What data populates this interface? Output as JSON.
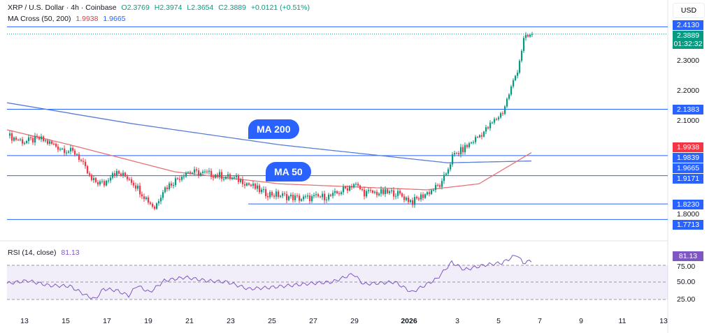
{
  "header": {
    "symbol": "XRP / U.S. Dollar · 4h · Coinbase",
    "o": "O2.3769",
    "h": "H2.3974",
    "l": "L2.3654",
    "c": "C2.3889",
    "change": "+0.0121 (+0.51%)"
  },
  "ma_legend": {
    "label": "MA Cross (50, 200)",
    "ma50": "1.9938",
    "ma200": "1.9665"
  },
  "rsi_legend": {
    "label": "RSI (14, close)",
    "value": "81.13"
  },
  "currency": "USD",
  "price_axis": [
    "2.3000",
    "2.2000",
    "2.1000",
    "1.8000"
  ],
  "price_tags": {
    "last": "2.3889",
    "countdown": "01:32:32",
    "ma50": "1.9938",
    "levels": [
      "2.4130",
      "2.1383",
      "1.9839",
      "1.9665",
      "1.9171",
      "1.8230",
      "1.7713"
    ]
  },
  "rsi_axis": [
    "75.00",
    "50.00",
    "25.00"
  ],
  "x_axis": [
    "13",
    "15",
    "17",
    "19",
    "21",
    "23",
    "25",
    "27",
    "29",
    "2026",
    "3",
    "5",
    "7",
    "9",
    "11",
    "13"
  ],
  "callouts": {
    "ma200": "MA 200",
    "ma50": "MA 50"
  },
  "colors": {
    "up": "#089981",
    "down": "#f23645",
    "ma200": "#5b7fd6",
    "ma50": "#e57373",
    "level": "#2962ff",
    "rsi": "#7e57c2"
  },
  "chart_data": {
    "type": "candlestick",
    "price_path": [
      [
        0,
        2.05
      ],
      [
        8,
        2.03
      ],
      [
        15,
        2.04
      ],
      [
        25,
        2.01
      ],
      [
        33,
        1.99
      ],
      [
        40,
        1.9
      ],
      [
        46,
        1.89
      ],
      [
        50,
        1.93
      ],
      [
        58,
        1.91
      ],
      [
        65,
        1.85
      ],
      [
        70,
        1.81
      ],
      [
        74,
        1.87
      ],
      [
        85,
        1.93
      ],
      [
        100,
        1.92
      ],
      [
        112,
        1.9
      ],
      [
        122,
        1.86
      ],
      [
        140,
        1.84
      ],
      [
        155,
        1.85
      ],
      [
        165,
        1.89
      ],
      [
        170,
        1.86
      ],
      [
        185,
        1.86
      ],
      [
        193,
        1.83
      ],
      [
        207,
        1.89
      ],
      [
        212,
        1.98
      ],
      [
        218,
        2.01
      ],
      [
        228,
        2.07
      ],
      [
        236,
        2.13
      ],
      [
        243,
        2.27
      ],
      [
        246,
        2.37
      ],
      [
        250,
        2.389
      ]
    ],
    "ma200": [
      [
        0,
        2.16
      ],
      [
        60,
        2.09
      ],
      [
        130,
        2.02
      ],
      [
        210,
        1.96
      ],
      [
        250,
        1.966
      ]
    ],
    "ma50": [
      [
        0,
        2.07
      ],
      [
        30,
        2.02
      ],
      [
        80,
        1.93
      ],
      [
        130,
        1.89
      ],
      [
        200,
        1.87
      ],
      [
        225,
        1.89
      ],
      [
        250,
        1.994
      ]
    ],
    "rsi": [
      [
        0,
        48
      ],
      [
        10,
        52
      ],
      [
        20,
        45
      ],
      [
        30,
        44
      ],
      [
        38,
        30
      ],
      [
        42,
        25
      ],
      [
        46,
        40
      ],
      [
        52,
        38
      ],
      [
        58,
        30
      ],
      [
        62,
        45
      ],
      [
        68,
        35
      ],
      [
        75,
        52
      ],
      [
        85,
        57
      ],
      [
        95,
        52
      ],
      [
        105,
        50
      ],
      [
        115,
        40
      ],
      [
        125,
        42
      ],
      [
        135,
        45
      ],
      [
        145,
        48
      ],
      [
        155,
        50
      ],
      [
        165,
        62
      ],
      [
        170,
        47
      ],
      [
        185,
        50
      ],
      [
        193,
        35
      ],
      [
        205,
        55
      ],
      [
        212,
        79
      ],
      [
        218,
        68
      ],
      [
        228,
        75
      ],
      [
        236,
        78
      ],
      [
        243,
        90
      ],
      [
        246,
        78
      ],
      [
        250,
        81.13
      ]
    ]
  }
}
